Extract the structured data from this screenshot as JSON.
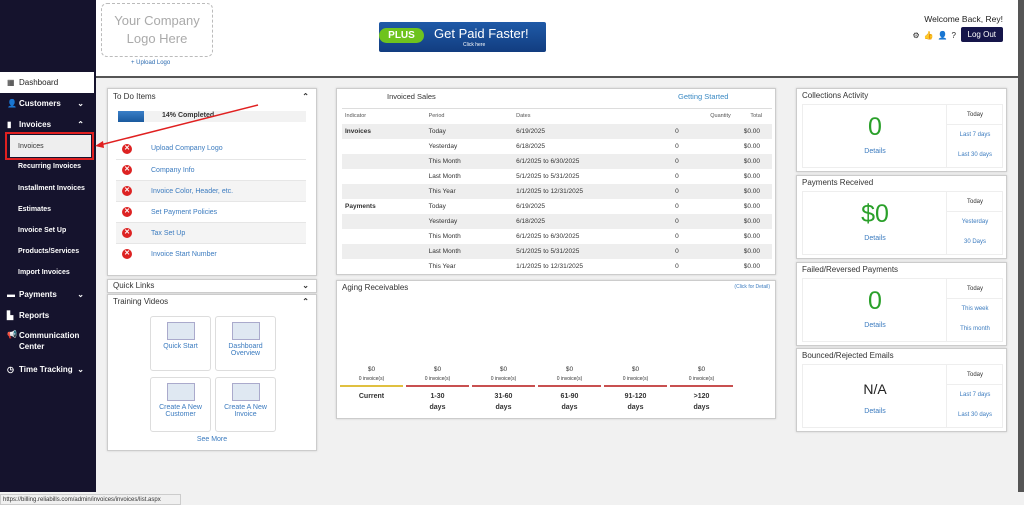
{
  "sidebar": {
    "items": [
      {
        "label": "Dashboard",
        "icon": "grid-icon"
      },
      {
        "label": "Customers",
        "icon": "user-icon"
      },
      {
        "label": "Invoices",
        "icon": "file-icon"
      },
      {
        "label": "Invoices"
      },
      {
        "label": "Recurring Invoices"
      },
      {
        "label": "Installment Invoices"
      },
      {
        "label": "Estimates"
      },
      {
        "label": "Invoice Set Up"
      },
      {
        "label": "Products/Services"
      },
      {
        "label": "Import Invoices"
      },
      {
        "label": "Payments",
        "icon": "card-icon"
      },
      {
        "label": "Reports",
        "icon": "chart-icon"
      },
      {
        "label": "Communication Center",
        "icon": "megaphone-icon"
      },
      {
        "label": "Time Tracking",
        "icon": "clock-icon"
      }
    ]
  },
  "header": {
    "logo_placeholder": "Your Company Logo Here",
    "upload_logo": "+ Upload Logo",
    "banner_plus": "PLUS",
    "banner_text": "Get Paid Faster!",
    "banner_sub": "Click here",
    "welcome": "Welcome Back, Rey!",
    "logout": "Log Out",
    "help": "?"
  },
  "todo": {
    "title": "To Do Items",
    "progress_label": "14% Completed",
    "progress": 14,
    "items": [
      "Upload Company Logo",
      "Company Info",
      "Invoice Color, Header, etc.",
      "Set Payment Policies",
      "Tax Set Up",
      "Invoice Start Number"
    ]
  },
  "quick_links": {
    "title": "Quick Links"
  },
  "training": {
    "title": "Training Videos",
    "items": [
      "Quick Start",
      "Dashboard Overview",
      "Create A New Customer",
      "Create A New Invoice"
    ],
    "see_more": "See More"
  },
  "sales": {
    "title": "Invoiced Sales",
    "getting_started": "Getting Started",
    "headers": [
      "Indicator",
      "Period",
      "Dates",
      "Quantity",
      "Total"
    ],
    "rows": [
      [
        "Invoices",
        "Today",
        "6/19/2025",
        "0",
        "$0.00"
      ],
      [
        "",
        "Yesterday",
        "6/18/2025",
        "0",
        "$0.00"
      ],
      [
        "",
        "This Month",
        "6/1/2025 to 6/30/2025",
        "0",
        "$0.00"
      ],
      [
        "",
        "Last Month",
        "5/1/2025 to 5/31/2025",
        "0",
        "$0.00"
      ],
      [
        "",
        "This Year",
        "1/1/2025 to 12/31/2025",
        "0",
        "$0.00"
      ],
      [
        "Payments",
        "Today",
        "6/19/2025",
        "0",
        "$0.00"
      ],
      [
        "",
        "Yesterday",
        "6/18/2025",
        "0",
        "$0.00"
      ],
      [
        "",
        "This Month",
        "6/1/2025 to 6/30/2025",
        "0",
        "$0.00"
      ],
      [
        "",
        "Last Month",
        "5/1/2025 to 5/31/2025",
        "0",
        "$0.00"
      ],
      [
        "",
        "This Year",
        "1/1/2025 to 12/31/2025",
        "0",
        "$0.00"
      ]
    ]
  },
  "aging": {
    "title": "Aging Receivables",
    "detail_link": "Click for Detail",
    "buckets": [
      {
        "amount": "$0",
        "count": "0 invoice(s)",
        "label1": "Current",
        "label2": "",
        "color": "#e0c040"
      },
      {
        "amount": "$0",
        "count": "0 invoice(s)",
        "label1": "1-30",
        "label2": "days",
        "color": "#c85050"
      },
      {
        "amount": "$0",
        "count": "0 invoice(s)",
        "label1": "31-60",
        "label2": "days",
        "color": "#c85050"
      },
      {
        "amount": "$0",
        "count": "0 invoice(s)",
        "label1": "61-90",
        "label2": "days",
        "color": "#c85050"
      },
      {
        "amount": "$0",
        "count": "0 invoice(s)",
        "label1": "91-120",
        "label2": "days",
        "color": "#c85050"
      },
      {
        "amount": "$0",
        "count": "0 invoice(s)",
        "label1": ">120",
        "label2": "days",
        "color": "#c85050"
      }
    ]
  },
  "right": [
    {
      "title": "Collections Activity",
      "value": "0",
      "details": "Details",
      "options": [
        "Today",
        "Last 7 days",
        "Last 30 days"
      ],
      "color": "#2aa02a"
    },
    {
      "title": "Payments Received",
      "value": "$0",
      "details": "Details",
      "options": [
        "Today",
        "Yesterday",
        "30 Days"
      ],
      "color": "#2aa02a"
    },
    {
      "title": "Failed/Reversed Payments",
      "value": "0",
      "details": "Details",
      "options": [
        "Today",
        "This week",
        "This month"
      ],
      "color": "#2aa02a"
    },
    {
      "title": "Bounced/Rejected Emails",
      "value": "N/A",
      "details": "Details",
      "options": [
        "Today",
        "Last 7 days",
        "Last 30 days"
      ],
      "color": "#222"
    }
  ],
  "status_url": "https://billing.reliabills.com/admin/invoices/invoices/list.aspx"
}
